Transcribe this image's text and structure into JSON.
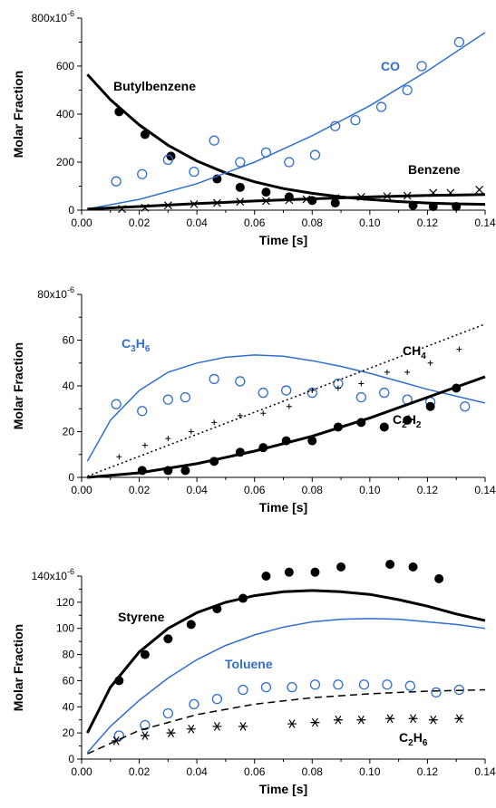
{
  "chart_data": [
    {
      "type": "scatter",
      "xlabel": "Time [s]",
      "ylabel": "Molar Fraction",
      "xlim": [
        0,
        0.14
      ],
      "ylim": [
        0,
        0.0008
      ],
      "xticks": [
        "0.00",
        "0.02",
        "0.04",
        "0.06",
        "0.08",
        "0.10",
        "0.12",
        "0.14"
      ],
      "yticks": [
        "0",
        "200",
        "400",
        "600",
        "800x10"
      ],
      "yticks_exponent": "-6",
      "series": [
        {
          "name": "Butylbenzene",
          "color": "#000000",
          "marker": "filled-circle",
          "points": [
            [
              0.013,
              410
            ],
            [
              0.022,
              315
            ],
            [
              0.031,
              225
            ],
            [
              0.047,
              130
            ],
            [
              0.055,
              95
            ],
            [
              0.064,
              75
            ],
            [
              0.072,
              55
            ],
            [
              0.08,
              40
            ],
            [
              0.088,
              30
            ],
            [
              0.115,
              20
            ],
            [
              0.122,
              15
            ],
            [
              0.13,
              15
            ]
          ],
          "curve": [
            [
              0.002,
              565
            ],
            [
              0.01,
              460
            ],
            [
              0.02,
              355
            ],
            [
              0.03,
              270
            ],
            [
              0.04,
              205
            ],
            [
              0.05,
              155
            ],
            [
              0.06,
              118
            ],
            [
              0.07,
              90
            ],
            [
              0.08,
              70
            ],
            [
              0.09,
              55
            ],
            [
              0.1,
              44
            ],
            [
              0.11,
              36
            ],
            [
              0.12,
              30
            ],
            [
              0.13,
              26
            ],
            [
              0.14,
              24
            ]
          ]
        },
        {
          "name": "CO",
          "color": "#2f6ecf",
          "marker": "open-circle",
          "points": [
            [
              0.012,
              120
            ],
            [
              0.021,
              150
            ],
            [
              0.03,
              210
            ],
            [
              0.039,
              160
            ],
            [
              0.046,
              290
            ],
            [
              0.055,
              200
            ],
            [
              0.064,
              240
            ],
            [
              0.072,
              200
            ],
            [
              0.081,
              230
            ],
            [
              0.088,
              350
            ],
            [
              0.095,
              375
            ],
            [
              0.104,
              430
            ],
            [
              0.113,
              500
            ],
            [
              0.118,
              600
            ],
            [
              0.131,
              700
            ]
          ],
          "curve": [
            [
              0.002,
              5
            ],
            [
              0.02,
              45
            ],
            [
              0.04,
              110
            ],
            [
              0.06,
              200
            ],
            [
              0.08,
              310
            ],
            [
              0.1,
              435
            ],
            [
              0.12,
              580
            ],
            [
              0.14,
              740
            ]
          ]
        },
        {
          "name": "Benzene",
          "color": "#000000",
          "marker": "x",
          "points": [
            [
              0.014,
              5
            ],
            [
              0.022,
              10
            ],
            [
              0.03,
              20
            ],
            [
              0.039,
              25
            ],
            [
              0.047,
              30
            ],
            [
              0.055,
              35
            ],
            [
              0.064,
              38
            ],
            [
              0.072,
              42
            ],
            [
              0.078,
              45
            ],
            [
              0.088,
              50
            ],
            [
              0.097,
              55
            ],
            [
              0.106,
              58
            ],
            [
              0.113,
              60
            ],
            [
              0.122,
              72
            ],
            [
              0.128,
              72
            ],
            [
              0.138,
              85
            ]
          ],
          "curve": [
            [
              0.002,
              5
            ],
            [
              0.02,
              15
            ],
            [
              0.04,
              27
            ],
            [
              0.06,
              38
            ],
            [
              0.08,
              47
            ],
            [
              0.1,
              55
            ],
            [
              0.12,
              61
            ],
            [
              0.14,
              65
            ]
          ]
        }
      ]
    },
    {
      "type": "scatter",
      "xlabel": "Time [s]",
      "ylabel": "Molar Fraction",
      "xlim": [
        0,
        0.14
      ],
      "ylim": [
        0,
        8e-05
      ],
      "xticks": [
        "0.00",
        "0.02",
        "0.04",
        "0.06",
        "0.08",
        "0.10",
        "0.12",
        "0.14"
      ],
      "yticks": [
        "0",
        "20",
        "40",
        "60",
        "80x10"
      ],
      "yticks_exponent": "-6",
      "series": [
        {
          "name": "C3H6",
          "label_main": "C",
          "label_sub1": "3",
          "label_mid": "H",
          "label_sub2": "6",
          "color": "#2f6ecf",
          "marker": "open-circle",
          "points": [
            [
              0.012,
              32
            ],
            [
              0.021,
              29
            ],
            [
              0.03,
              34
            ],
            [
              0.036,
              35
            ],
            [
              0.046,
              43
            ],
            [
              0.055,
              42
            ],
            [
              0.063,
              37
            ],
            [
              0.071,
              38
            ],
            [
              0.08,
              37
            ],
            [
              0.089,
              41
            ],
            [
              0.097,
              35
            ],
            [
              0.105,
              37
            ],
            [
              0.113,
              34
            ],
            [
              0.121,
              33
            ],
            [
              0.133,
              31
            ]
          ],
          "curve": [
            [
              0.002,
              7
            ],
            [
              0.01,
              25
            ],
            [
              0.02,
              38
            ],
            [
              0.03,
              46
            ],
            [
              0.04,
              50
            ],
            [
              0.05,
              52.5
            ],
            [
              0.06,
              53.5
            ],
            [
              0.07,
              53
            ],
            [
              0.08,
              51
            ],
            [
              0.09,
              48.5
            ],
            [
              0.1,
              45.5
            ],
            [
              0.11,
              42
            ],
            [
              0.12,
              38.5
            ],
            [
              0.13,
              35.5
            ],
            [
              0.14,
              32.5
            ]
          ]
        },
        {
          "name": "CH4",
          "label_main": "CH",
          "label_sub1": "4",
          "label_mid": "",
          "label_sub2": "",
          "color": "#000000",
          "marker": "plus",
          "points": [
            [
              0.013,
              9
            ],
            [
              0.022,
              14
            ],
            [
              0.03,
              17
            ],
            [
              0.038,
              20
            ],
            [
              0.046,
              24
            ],
            [
              0.055,
              27
            ],
            [
              0.063,
              28
            ],
            [
              0.072,
              31
            ],
            [
              0.08,
              38
            ],
            [
              0.089,
              39
            ],
            [
              0.097,
              41
            ],
            [
              0.106,
              46
            ],
            [
              0.113,
              46
            ],
            [
              0.121,
              50
            ],
            [
              0.131,
              56
            ]
          ],
          "curve": [
            [
              0.002,
              0.5
            ],
            [
              0.14,
              67
            ]
          ],
          "line_style": "dotted"
        },
        {
          "name": "C2H2",
          "label_main": "C",
          "label_sub1": "2",
          "label_mid": "H",
          "label_sub2": "2",
          "color": "#000000",
          "marker": "filled-circle",
          "points": [
            [
              0.021,
              3
            ],
            [
              0.03,
              3
            ],
            [
              0.036,
              3
            ],
            [
              0.046,
              7
            ],
            [
              0.055,
              11
            ],
            [
              0.063,
              13
            ],
            [
              0.071,
              16
            ],
            [
              0.08,
              16
            ],
            [
              0.089,
              22
            ],
            [
              0.097,
              24
            ],
            [
              0.105,
              22
            ],
            [
              0.113,
              25
            ],
            [
              0.121,
              31
            ],
            [
              0.13,
              39
            ]
          ],
          "curve": [
            [
              0.002,
              0
            ],
            [
              0.02,
              2
            ],
            [
              0.04,
              6
            ],
            [
              0.06,
              11.5
            ],
            [
              0.08,
              18
            ],
            [
              0.1,
              26
            ],
            [
              0.12,
              35
            ],
            [
              0.14,
              44
            ]
          ]
        }
      ]
    },
    {
      "type": "scatter",
      "xlabel": "Time [s]",
      "ylabel": "Molar Fraction",
      "xlim": [
        0,
        0.14
      ],
      "ylim": [
        0,
        0.00014
      ],
      "xticks": [
        "0.00",
        "0.02",
        "0.04",
        "0.06",
        "0.08",
        "0.10",
        "0.12",
        "0.14"
      ],
      "yticks": [
        "0",
        "20",
        "40",
        "60",
        "80",
        "100",
        "120",
        "140x10"
      ],
      "yticks_exponent": "-6",
      "series": [
        {
          "name": "Styrene",
          "color": "#000000",
          "marker": "filled-circle",
          "points": [
            [
              0.013,
              60
            ],
            [
              0.022,
              80
            ],
            [
              0.03,
              92
            ],
            [
              0.038,
              103
            ],
            [
              0.047,
              115
            ],
            [
              0.056,
              123
            ],
            [
              0.064,
              140
            ],
            [
              0.072,
              143
            ],
            [
              0.081,
              143
            ],
            [
              0.09,
              147
            ],
            [
              0.107,
              149
            ],
            [
              0.115,
              147
            ],
            [
              0.124,
              138
            ]
          ],
          "curve": [
            [
              0.002,
              20
            ],
            [
              0.01,
              55
            ],
            [
              0.02,
              82
            ],
            [
              0.03,
              100
            ],
            [
              0.04,
              112
            ],
            [
              0.05,
              120
            ],
            [
              0.06,
              125
            ],
            [
              0.07,
              128
            ],
            [
              0.08,
              129
            ],
            [
              0.09,
              128
            ],
            [
              0.1,
              126
            ],
            [
              0.11,
              122
            ],
            [
              0.12,
              117
            ],
            [
              0.13,
              111
            ],
            [
              0.14,
              106
            ]
          ]
        },
        {
          "name": "Toluene",
          "color": "#2f6ecf",
          "marker": "open-circle",
          "points": [
            [
              0.013,
              18
            ],
            [
              0.022,
              26
            ],
            [
              0.03,
              35
            ],
            [
              0.039,
              42
            ],
            [
              0.047,
              46
            ],
            [
              0.056,
              53
            ],
            [
              0.064,
              55
            ],
            [
              0.073,
              55
            ],
            [
              0.081,
              57
            ],
            [
              0.089,
              57
            ],
            [
              0.098,
              57
            ],
            [
              0.106,
              57
            ],
            [
              0.114,
              56
            ],
            [
              0.123,
              51
            ],
            [
              0.131,
              53
            ]
          ],
          "curve": [
            [
              0.002,
              5
            ],
            [
              0.01,
              25
            ],
            [
              0.02,
              45
            ],
            [
              0.03,
              62
            ],
            [
              0.04,
              76
            ],
            [
              0.05,
              87
            ],
            [
              0.06,
              95
            ],
            [
              0.07,
              101
            ],
            [
              0.08,
              105
            ],
            [
              0.09,
              107
            ],
            [
              0.1,
              107.5
            ],
            [
              0.11,
              107
            ],
            [
              0.12,
              105
            ],
            [
              0.13,
              103
            ],
            [
              0.14,
              100
            ]
          ]
        },
        {
          "name": "C2H6",
          "label_main": "C",
          "label_sub1": "2",
          "label_mid": "H",
          "label_sub2": "6",
          "color": "#000000",
          "marker": "asterisk",
          "points": [
            [
              0.012,
              14
            ],
            [
              0.022,
              18
            ],
            [
              0.031,
              20
            ],
            [
              0.038,
              23
            ],
            [
              0.047,
              25
            ],
            [
              0.056,
              25
            ],
            [
              0.073,
              27
            ],
            [
              0.081,
              28
            ],
            [
              0.089,
              30
            ],
            [
              0.097,
              30
            ],
            [
              0.107,
              31
            ],
            [
              0.115,
              31
            ],
            [
              0.122,
              30
            ],
            [
              0.131,
              31
            ]
          ],
          "curve": [
            [
              0.002,
              4
            ],
            [
              0.02,
              22
            ],
            [
              0.04,
              34
            ],
            [
              0.06,
              42
            ],
            [
              0.08,
              47
            ],
            [
              0.1,
              50
            ],
            [
              0.12,
              52
            ],
            [
              0.14,
              53
            ]
          ],
          "line_style": "dashed"
        }
      ]
    }
  ]
}
